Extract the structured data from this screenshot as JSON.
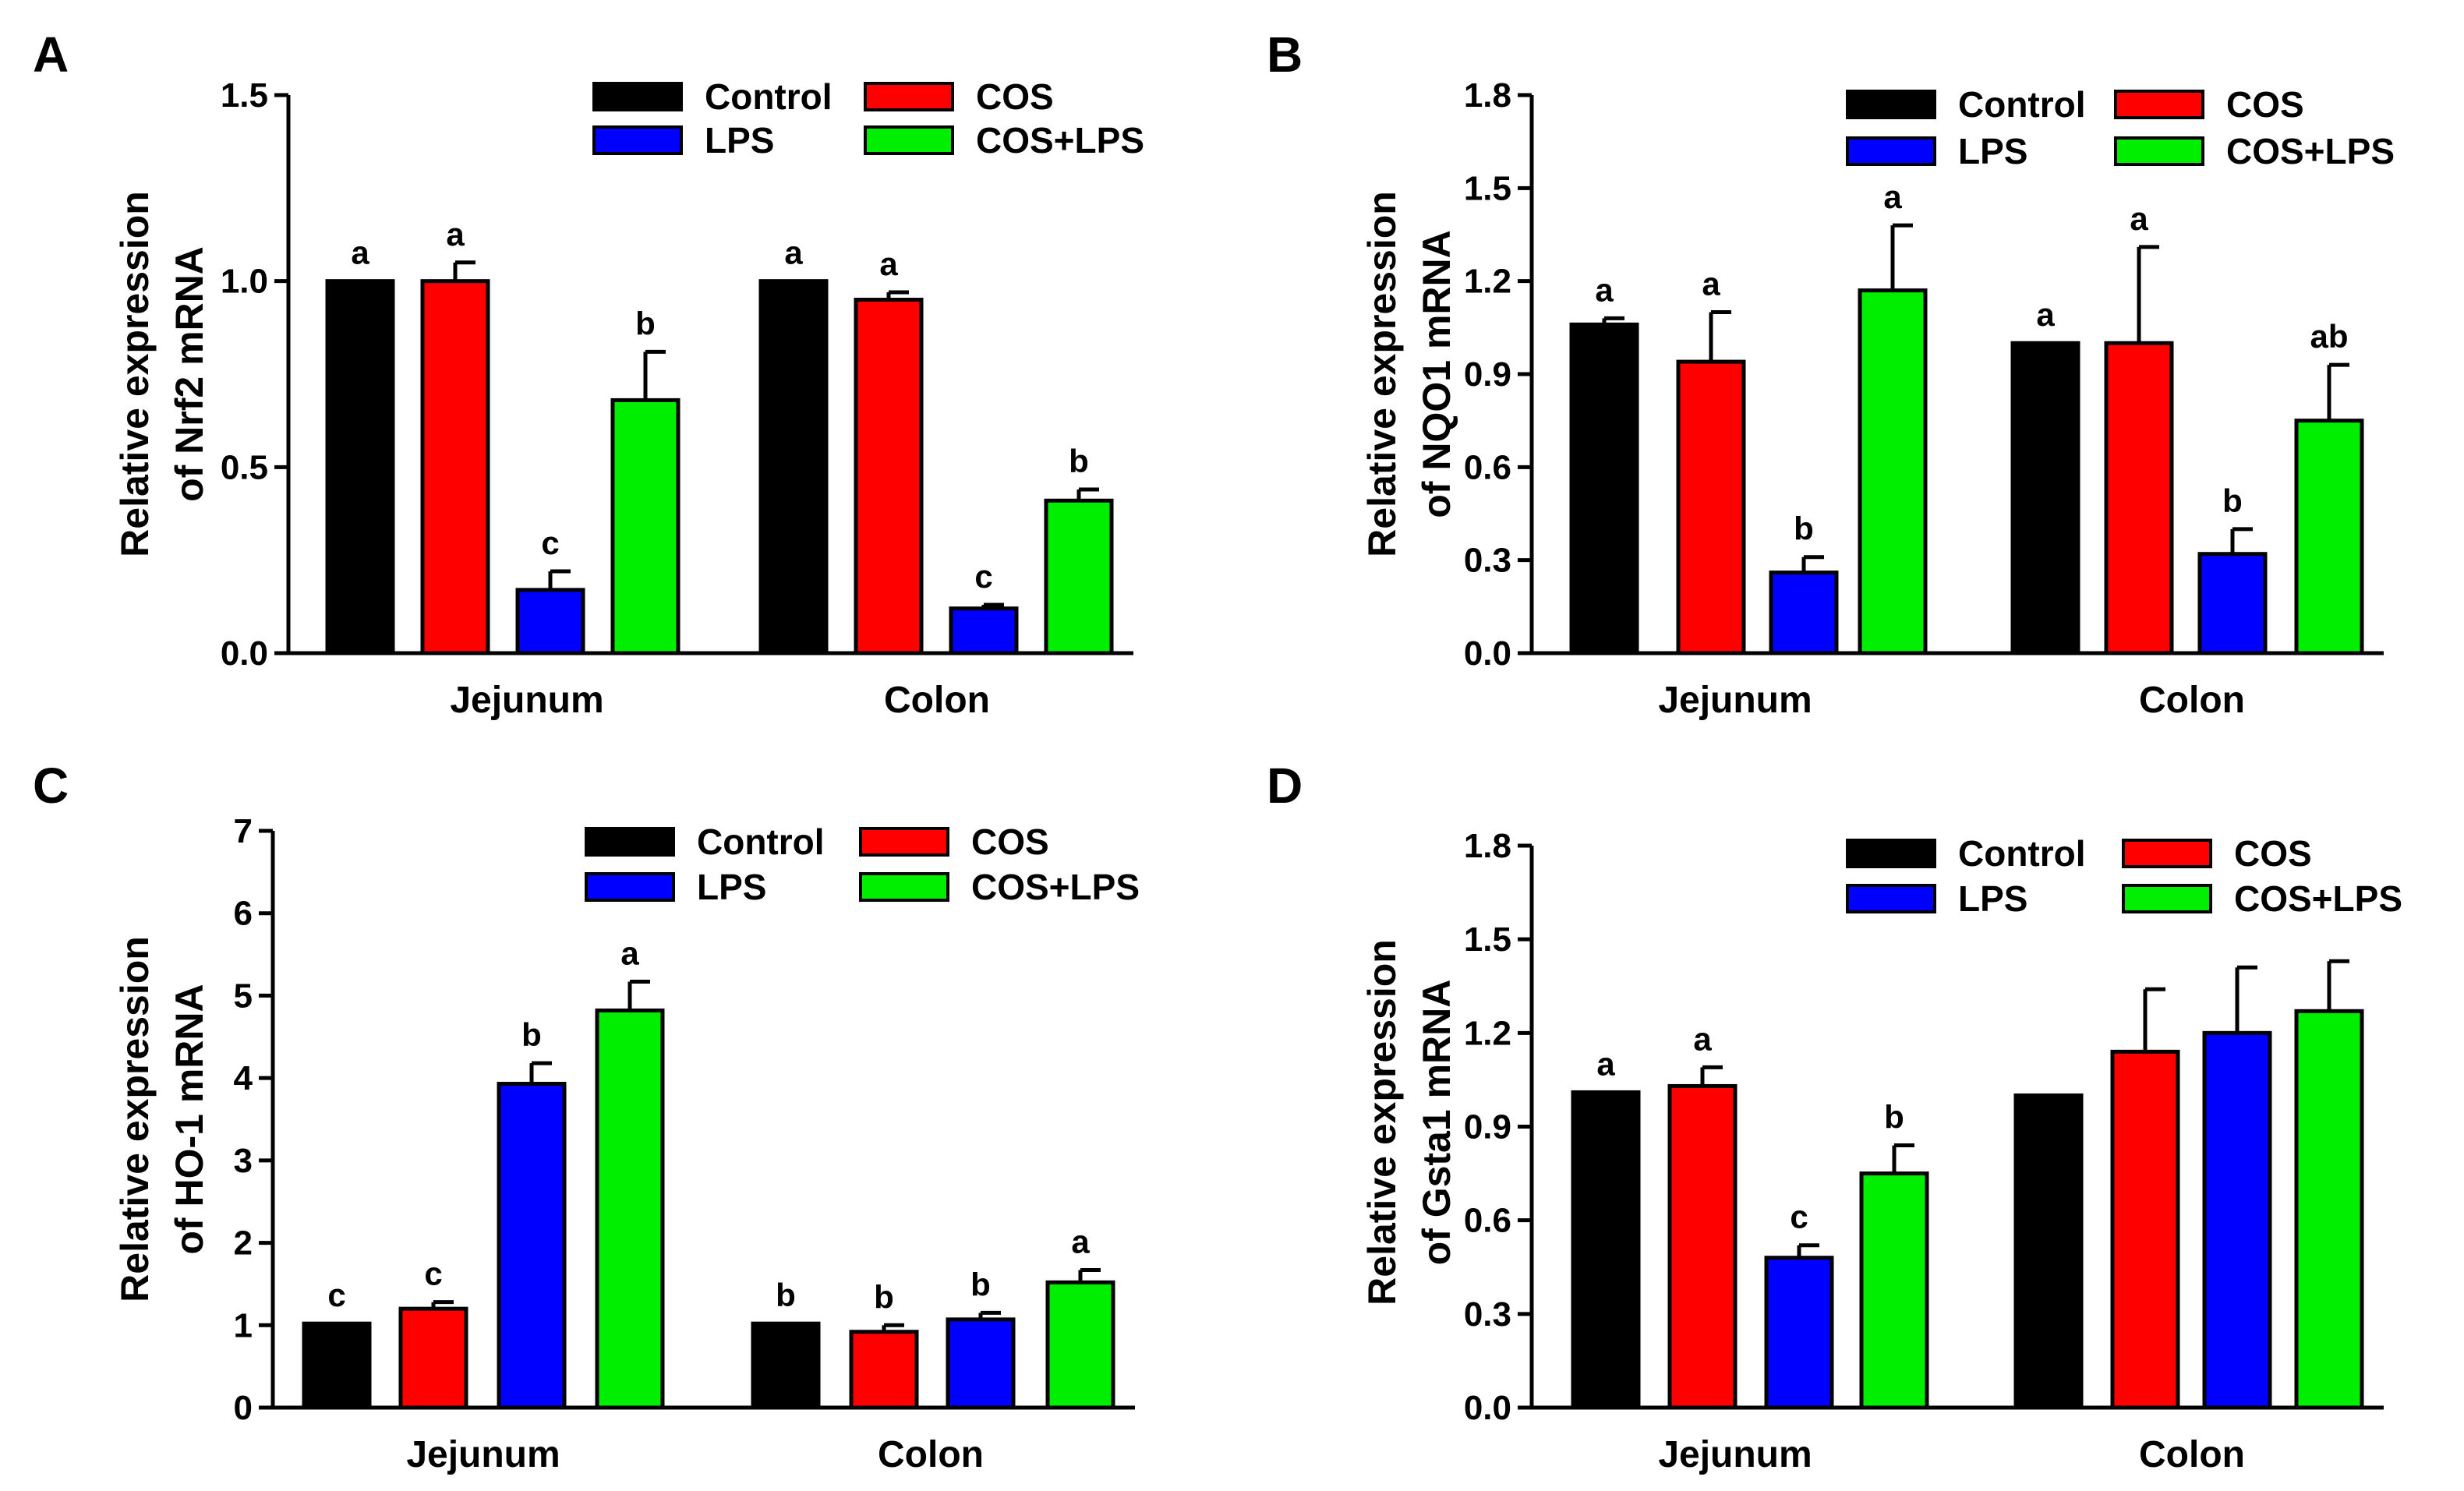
{
  "chart_data": [
    {
      "panel": "A",
      "type": "bar",
      "title": "",
      "ylabel": [
        "Relative expression",
        "of Nrf2 mRNA"
      ],
      "xlabel": "",
      "categories": [
        "Jejunum",
        "Colon"
      ],
      "ylim": [
        0,
        1.5
      ],
      "yticks": [
        "0.0",
        "0.5",
        "1.0",
        "1.5"
      ],
      "legend": "top-right",
      "series": [
        {
          "name": "Control",
          "color": "#000000",
          "values": [
            1.0,
            1.0
          ],
          "errors": [
            0.0,
            0.0
          ],
          "sig": [
            "a",
            "a"
          ]
        },
        {
          "name": "COS",
          "color": "#ff0000",
          "values": [
            1.0,
            0.95
          ],
          "errors": [
            0.05,
            0.02
          ],
          "sig": [
            "a",
            "a"
          ]
        },
        {
          "name": "LPS",
          "color": "#0000ff",
          "values": [
            0.17,
            0.12
          ],
          "errors": [
            0.05,
            0.01
          ],
          "sig": [
            "c",
            "c"
          ]
        },
        {
          "name": "COS+LPS",
          "color": "#00ee00",
          "values": [
            0.68,
            0.41
          ],
          "errors": [
            0.13,
            0.03
          ],
          "sig": [
            "b",
            "b"
          ]
        }
      ]
    },
    {
      "panel": "B",
      "type": "bar",
      "title": "",
      "ylabel": [
        "Relative expression",
        "of NQO1 mRNA"
      ],
      "xlabel": "",
      "categories": [
        "Jejunum",
        "Colon"
      ],
      "ylim": [
        0,
        1.8
      ],
      "yticks": [
        "0.0",
        "0.3",
        "0.6",
        "0.9",
        "1.2",
        "1.5",
        "1.8"
      ],
      "legend": "top-right",
      "series": [
        {
          "name": "Control",
          "color": "#000000",
          "values": [
            1.06,
            1.0
          ],
          "errors": [
            0.02,
            0.0
          ],
          "sig": [
            "a",
            "a"
          ]
        },
        {
          "name": "COS",
          "color": "#ff0000",
          "values": [
            0.94,
            1.0
          ],
          "errors": [
            0.16,
            0.31
          ],
          "sig": [
            "a",
            "a"
          ]
        },
        {
          "name": "LPS",
          "color": "#0000ff",
          "values": [
            0.26,
            0.32
          ],
          "errors": [
            0.05,
            0.08
          ],
          "sig": [
            "b",
            "b"
          ]
        },
        {
          "name": "COS+LPS",
          "color": "#00ee00",
          "values": [
            1.17,
            0.75
          ],
          "errors": [
            0.21,
            0.18
          ],
          "sig": [
            "a",
            "ab"
          ]
        }
      ]
    },
    {
      "panel": "C",
      "type": "bar",
      "title": "",
      "ylabel": [
        "Relative expression",
        "of HO-1 mRNA"
      ],
      "xlabel": "",
      "categories": [
        "Jejunum",
        "Colon"
      ],
      "ylim": [
        0,
        7
      ],
      "yticks": [
        "0",
        "1",
        "2",
        "3",
        "4",
        "5",
        "6",
        "7"
      ],
      "legend": "top-right",
      "series": [
        {
          "name": "Control",
          "color": "#000000",
          "values": [
            1.02,
            1.02
          ],
          "errors": [
            0.0,
            0.0
          ],
          "sig": [
            "c",
            "b"
          ]
        },
        {
          "name": "COS",
          "color": "#ff0000",
          "values": [
            1.2,
            0.92
          ],
          "errors": [
            0.08,
            0.08
          ],
          "sig": [
            "c",
            "b"
          ]
        },
        {
          "name": "LPS",
          "color": "#0000ff",
          "values": [
            3.93,
            1.07
          ],
          "errors": [
            0.25,
            0.08
          ],
          "sig": [
            "b",
            "b"
          ]
        },
        {
          "name": "COS+LPS",
          "color": "#00ee00",
          "values": [
            4.82,
            1.52
          ],
          "errors": [
            0.35,
            0.15
          ],
          "sig": [
            "a",
            "a"
          ]
        }
      ]
    },
    {
      "panel": "D",
      "type": "bar",
      "title": "",
      "ylabel": [
        "Relative expression",
        "of Gsta1 mRNA"
      ],
      "xlabel": "",
      "categories": [
        "Jejunum",
        "Colon"
      ],
      "ylim": [
        0,
        1.8
      ],
      "yticks": [
        "0.0",
        "0.3",
        "0.6",
        "0.9",
        "1.2",
        "1.5",
        "1.8"
      ],
      "legend": "top-right",
      "series": [
        {
          "name": "Control",
          "color": "#000000",
          "values": [
            1.01,
            1.0
          ],
          "errors": [
            0.0,
            0.0
          ],
          "sig": [
            "a",
            ""
          ]
        },
        {
          "name": "COS",
          "color": "#ff0000",
          "values": [
            1.03,
            1.14
          ],
          "errors": [
            0.06,
            0.2
          ],
          "sig": [
            "a",
            ""
          ]
        },
        {
          "name": "LPS",
          "color": "#0000ff",
          "values": [
            0.48,
            1.2
          ],
          "errors": [
            0.04,
            0.21
          ],
          "sig": [
            "c",
            ""
          ]
        },
        {
          "name": "COS+LPS",
          "color": "#00ee00",
          "values": [
            0.75,
            1.27
          ],
          "errors": [
            0.09,
            0.16
          ],
          "sig": [
            "b",
            ""
          ]
        }
      ]
    }
  ]
}
